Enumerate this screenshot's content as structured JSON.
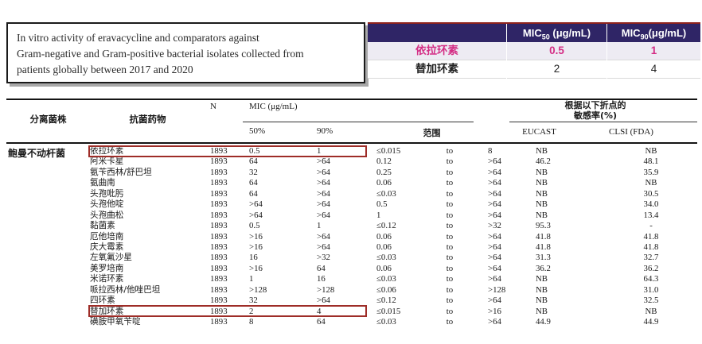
{
  "title_box": {
    "lines": [
      "In vitro activity of eravacycline and comparators against",
      "Gram-negative and Gram-positive bacterial isolates collected from",
      "patients globally between 2017 and 2020"
    ]
  },
  "summary_table": {
    "header": {
      "mic50": {
        "pre": "MIC",
        "sub": "50",
        "post": " (μg/mL)"
      },
      "mic90": {
        "pre": "MIC",
        "sub": "90",
        "post": "(μg/mL)"
      }
    },
    "rows": [
      {
        "drug": "依拉环素",
        "mic50": "0.5",
        "mic90": "1",
        "highlight": true
      },
      {
        "drug": "替加环素",
        "mic50": "2",
        "mic90": "4",
        "highlight": false
      }
    ]
  },
  "main_table": {
    "header": {
      "isolate": "分离菌株",
      "drug": "抗菌药物",
      "n": "N",
      "mic_group": "MIC (μg/mL)",
      "p50": "50%",
      "p90": "90%",
      "range": "范围",
      "susc_line1": "根据以下折点的",
      "susc_line2": "敏感率(%)",
      "eucast": "EUCAST",
      "clsi": "CLSI (FDA)"
    },
    "group_label": "鲍曼不动杆菌",
    "rows": [
      {
        "drug": "依拉环素",
        "n": "1893",
        "mic50": "0.5",
        "mic90": "1",
        "range_low": "≤0.015",
        "to": "to",
        "range_high": "8",
        "eucast": "NB",
        "clsi": "NB",
        "boxed": true
      },
      {
        "drug": "阿米卡星",
        "n": "1893",
        "mic50": "64",
        "mic90": ">64",
        "range_low": "0.12",
        "to": "to",
        "range_high": ">64",
        "eucast": "46.2",
        "clsi": "48.1",
        "boxed": false
      },
      {
        "drug": "氨苄西林/舒巴坦",
        "n": "1893",
        "mic50": "32",
        "mic90": ">64",
        "range_low": "0.25",
        "to": "to",
        "range_high": ">64",
        "eucast": "NB",
        "clsi": "35.9",
        "boxed": false
      },
      {
        "drug": "氨曲南",
        "n": "1893",
        "mic50": "64",
        "mic90": ">64",
        "range_low": "0.06",
        "to": "to",
        "range_high": ">64",
        "eucast": "NB",
        "clsi": "NB",
        "boxed": false
      },
      {
        "drug": "头孢吡肟",
        "n": "1893",
        "mic50": "64",
        "mic90": ">64",
        "range_low": "≤0.03",
        "to": "to",
        "range_high": ">64",
        "eucast": "NB",
        "clsi": "30.5",
        "boxed": false
      },
      {
        "drug": "头孢他啶",
        "n": "1893",
        "mic50": ">64",
        "mic90": ">64",
        "range_low": "0.5",
        "to": "to",
        "range_high": ">64",
        "eucast": "NB",
        "clsi": "34.0",
        "boxed": false
      },
      {
        "drug": "头孢曲松",
        "n": "1893",
        "mic50": ">64",
        "mic90": ">64",
        "range_low": "1",
        "to": "to",
        "range_high": ">64",
        "eucast": "NB",
        "clsi": "13.4",
        "boxed": false
      },
      {
        "drug": "黏菌素",
        "n": "1893",
        "mic50": "0.5",
        "mic90": "1",
        "range_low": "≤0.12",
        "to": "to",
        "range_high": ">32",
        "eucast": "95.3",
        "clsi": "-",
        "boxed": false
      },
      {
        "drug": "厄他培南",
        "n": "1893",
        "mic50": ">16",
        "mic90": ">64",
        "range_low": "0.06",
        "to": "to",
        "range_high": ">64",
        "eucast": "41.8",
        "clsi": "41.8",
        "boxed": false
      },
      {
        "drug": "庆大霉素",
        "n": "1893",
        "mic50": ">16",
        "mic90": ">64",
        "range_low": "0.06",
        "to": "to",
        "range_high": ">64",
        "eucast": "41.8",
        "clsi": "41.8",
        "boxed": false
      },
      {
        "drug": "左氧氟沙星",
        "n": "1893",
        "mic50": "16",
        "mic90": ">32",
        "range_low": "≤0.03",
        "to": "to",
        "range_high": ">64",
        "eucast": "31.3",
        "clsi": "32.7",
        "boxed": false
      },
      {
        "drug": "美罗培南",
        "n": "1893",
        "mic50": ">16",
        "mic90": "64",
        "range_low": "0.06",
        "to": "to",
        "range_high": ">64",
        "eucast": "36.2",
        "clsi": "36.2",
        "boxed": false
      },
      {
        "drug": "米诺环素",
        "n": "1893",
        "mic50": "1",
        "mic90": "16",
        "range_low": "≤0.03",
        "to": "to",
        "range_high": ">64",
        "eucast": "NB",
        "clsi": "64.3",
        "boxed": false
      },
      {
        "drug": "哌拉西林/他唑巴坦",
        "n": "1893",
        "mic50": ">128",
        "mic90": ">128",
        "range_low": "≤0.06",
        "to": "to",
        "range_high": ">128",
        "eucast": "NB",
        "clsi": "31.0",
        "boxed": false
      },
      {
        "drug": "四环素",
        "n": "1893",
        "mic50": "32",
        "mic90": ">64",
        "range_low": "≤0.12",
        "to": "to",
        "range_high": ">64",
        "eucast": "NB",
        "clsi": "32.5",
        "boxed": false
      },
      {
        "drug": "替加环素",
        "n": "1893",
        "mic50": "2",
        "mic90": "4",
        "range_low": "≤0.015",
        "to": "to",
        "range_high": ">16",
        "eucast": "NB",
        "clsi": "NB",
        "boxed": true
      },
      {
        "drug": "磺胺甲氧苄啶",
        "n": "1893",
        "mic50": "8",
        "mic90": "64",
        "range_low": "≤0.03",
        "to": "to",
        "range_high": ">64",
        "eucast": "44.9",
        "clsi": "44.9",
        "boxed": false
      }
    ]
  },
  "colors": {
    "header_navy": "#2f2566",
    "accent_magenta": "#d42e85",
    "highlight_row_bg": "#edebf3",
    "box_red": "#9e2d28"
  }
}
